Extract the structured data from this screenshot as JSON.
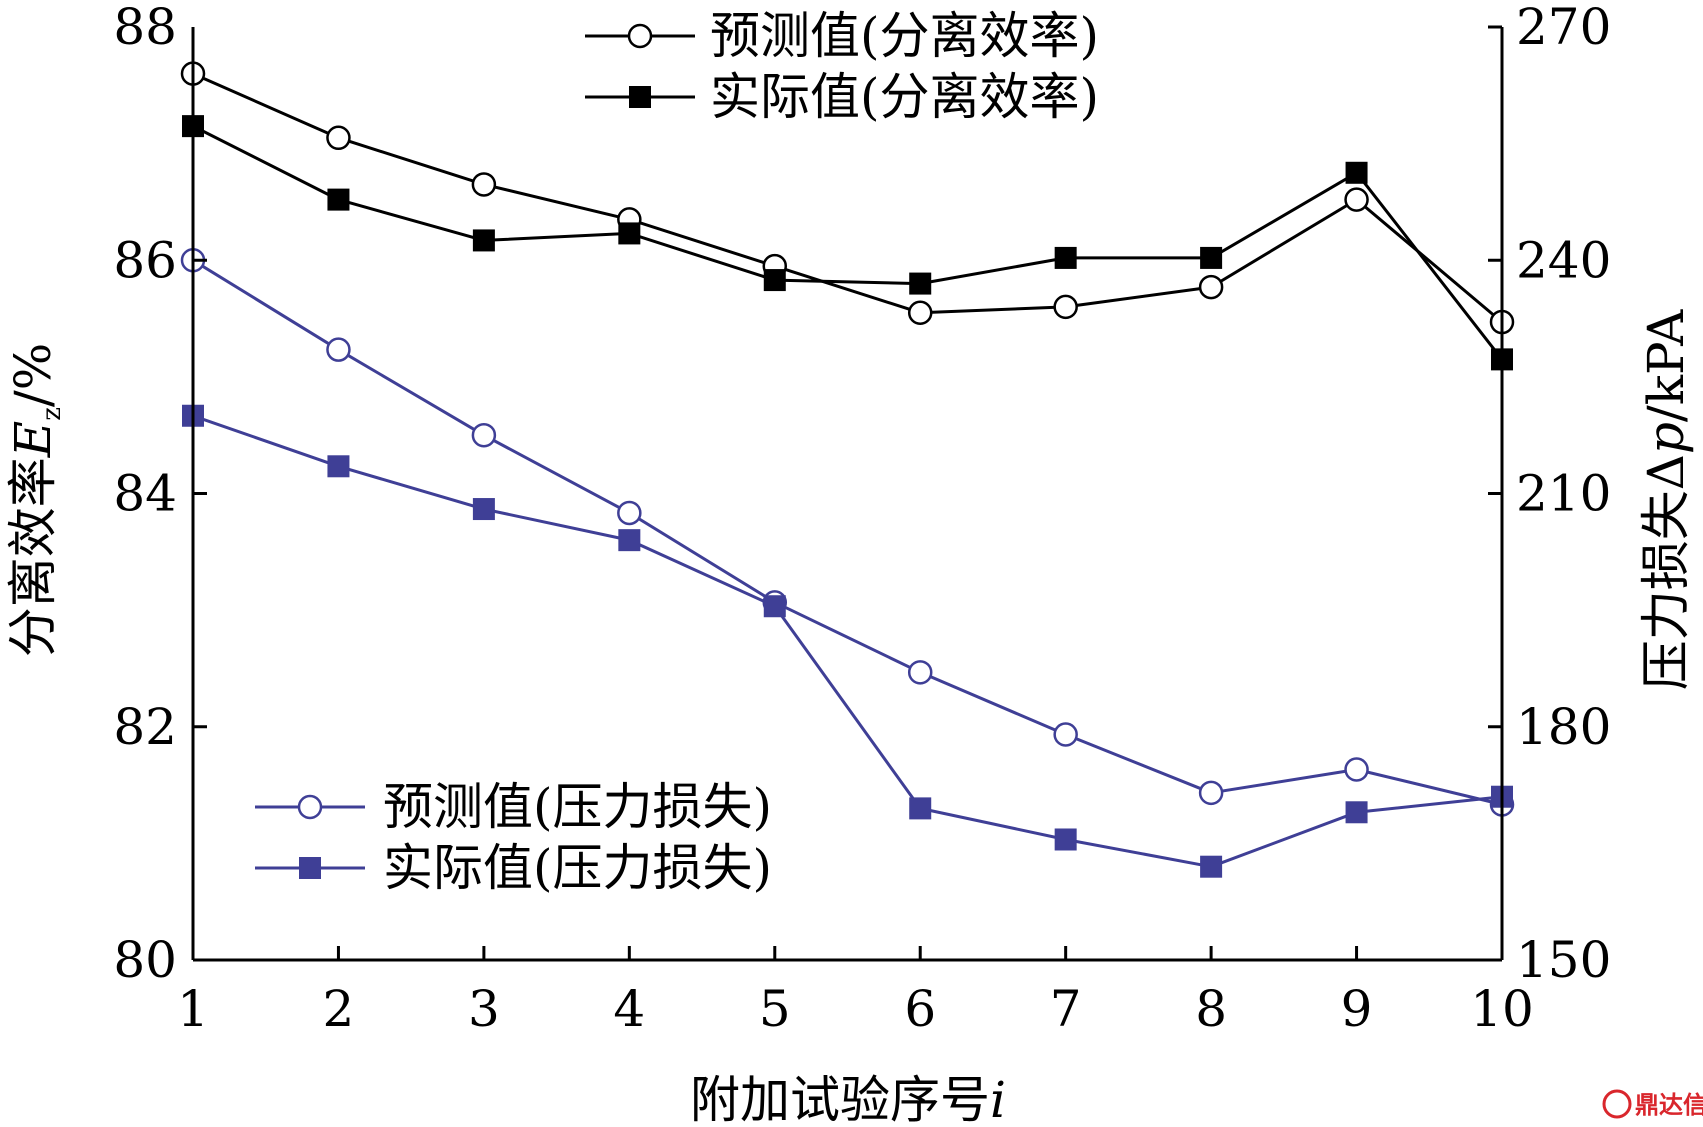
{
  "chart_data": {
    "type": "line",
    "x": [
      1,
      2,
      3,
      4,
      5,
      6,
      7,
      8,
      9,
      10
    ],
    "x_tick_labels": [
      "1",
      "2",
      "3",
      "4",
      "5",
      "6",
      "7",
      "8",
      "9",
      "10"
    ],
    "xlabel": "附加试验序号",
    "xlabel_var": "i",
    "xlim": [
      1,
      10
    ],
    "left_axis": {
      "label_prefix": "分离效率",
      "label_var": "E",
      "label_sub": "z",
      "label_suffix": "/%",
      "ylim": [
        80,
        88
      ],
      "ticks": [
        80,
        82,
        84,
        86,
        88
      ],
      "tick_labels": [
        "80",
        "82",
        "84",
        "86",
        "88"
      ]
    },
    "right_axis": {
      "label_prefix": "压力损失Δ",
      "label_var": "p",
      "label_suffix": "/kPA",
      "ylim": [
        150,
        270
      ],
      "ticks": [
        150,
        180,
        210,
        240,
        270
      ],
      "tick_labels": [
        "150",
        "180",
        "210",
        "240",
        "270"
      ]
    },
    "series": [
      {
        "name": "预测值(分离效率)",
        "axis": "left",
        "marker": "circle-open",
        "color": "#000000",
        "values": [
          87.6,
          87.05,
          86.65,
          86.35,
          85.95,
          85.55,
          85.6,
          85.77,
          86.52,
          85.47
        ]
      },
      {
        "name": "实际值(分离效率)",
        "axis": "left",
        "marker": "square-filled",
        "color": "#000000",
        "values": [
          87.15,
          86.52,
          86.17,
          86.23,
          85.83,
          85.8,
          86.02,
          86.02,
          86.75,
          85.15
        ]
      },
      {
        "name": "预测值(压力损失)",
        "axis": "right",
        "marker": "circle-open",
        "color": "#3f3f96",
        "values": [
          240.0,
          228.5,
          217.5,
          207.5,
          196.0,
          187.0,
          179.0,
          171.5,
          174.5,
          170.0
        ]
      },
      {
        "name": "实际值(压力损失)",
        "axis": "right",
        "marker": "square-filled",
        "color": "#3f3f96",
        "values": [
          220.0,
          213.5,
          208.0,
          204.0,
          195.5,
          169.5,
          165.5,
          162.0,
          169.0,
          171.0
        ]
      }
    ],
    "legend": {
      "top": {
        "placement": "top-center",
        "entries": [
          "预测值(分离效率)",
          "实际值(分离效率)"
        ]
      },
      "bottom": {
        "placement": "bottom-left",
        "entries": [
          "预测值(压力损失)",
          "实际值(压力损失)"
        ]
      }
    }
  },
  "watermark": {
    "text": "鼎达信",
    "color": "#d9262c"
  }
}
